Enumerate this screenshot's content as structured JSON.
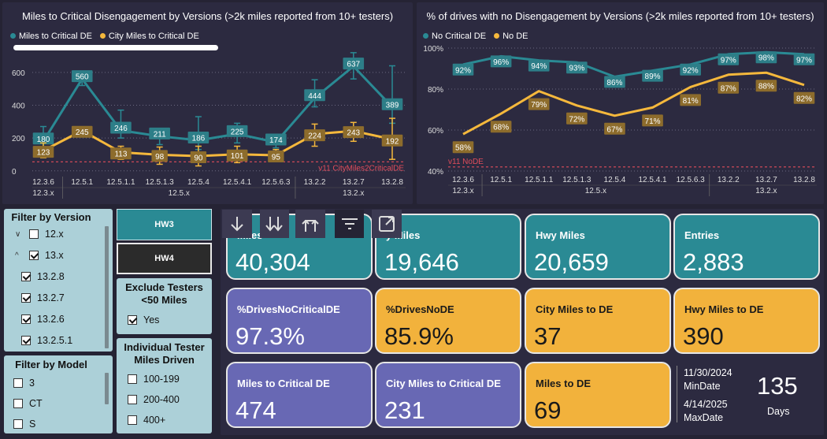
{
  "colors": {
    "teal": "#2a8a94",
    "yellow": "#f5b83c",
    "purple": "#6868b4",
    "red": "#e04c5a",
    "bg": "#252334"
  },
  "chart1": {
    "title": "Miles to Critical Disengagement by Versions (>2k miles reported from 10+ testers)",
    "legend": [
      "Miles to Critical DE",
      "City Miles to Critical DE"
    ],
    "y_ticks": [
      "0",
      "200",
      "400",
      "600"
    ],
    "ref_label": "v11 CityMiles2CriticalDE"
  },
  "chart2": {
    "title": "% of drives with no Disengagement by Versions (>2k miles reported from 10+ testers)",
    "legend": [
      "No Critical DE",
      "No DE"
    ],
    "y_ticks": [
      "40%",
      "60%",
      "80%",
      "100%"
    ],
    "ref_label": "v11 NoDE"
  },
  "chart_data": [
    {
      "type": "line",
      "title": "Miles to Critical Disengagement by Versions (>2k miles reported from 10+ testers)",
      "categories": [
        "12.3.6",
        "12.5.1",
        "12.5.1.1",
        "12.5.1.3",
        "12.5.4",
        "12.5.4.1",
        "12.5.6.3",
        "13.2.2",
        "13.2.7",
        "13.2.8"
      ],
      "group_labels": [
        {
          "label": "12.3.x",
          "from": 0,
          "to": 0
        },
        {
          "label": "12.5.x",
          "from": 1,
          "to": 6
        },
        {
          "label": "13.2.x",
          "from": 7,
          "to": 9
        }
      ],
      "series": [
        {
          "name": "Miles to Critical DE",
          "values": [
            180,
            560,
            246,
            211,
            186,
            225,
            174,
            444,
            637,
            389
          ],
          "error_low": [
            140,
            520,
            200,
            160,
            130,
            170,
            140,
            390,
            560,
            290
          ],
          "error_high": [
            270,
            580,
            370,
            250,
            330,
            290,
            215,
            555,
            720,
            640
          ]
        },
        {
          "name": "City Miles to Critical DE",
          "values": [
            123,
            245,
            113,
            98,
            90,
            101,
            95,
            224,
            243,
            192
          ],
          "error_low": [
            80,
            225,
            70,
            40,
            30,
            50,
            60,
            150,
            180,
            70
          ],
          "error_high": [
            170,
            265,
            150,
            145,
            150,
            150,
            130,
            285,
            295,
            320
          ]
        }
      ],
      "reference_line": {
        "label": "v11 CityMiles2CriticalDE",
        "value": 55
      },
      "ylim": [
        -30,
        700
      ],
      "grid": true,
      "legend_position": "top-left"
    },
    {
      "type": "line",
      "title": "% of drives with no Disengagement by Versions (>2k miles reported from 10+ testers)",
      "categories": [
        "12.3.6",
        "12.5.1",
        "12.5.1.1",
        "12.5.1.3",
        "12.5.4",
        "12.5.4.1",
        "12.5.6.3",
        "13.2.2",
        "13.2.7",
        "13.2.8"
      ],
      "group_labels": [
        {
          "label": "12.3.x",
          "from": 0,
          "to": 0
        },
        {
          "label": "12.5.x",
          "from": 1,
          "to": 6
        },
        {
          "label": "13.2.x",
          "from": 7,
          "to": 9
        }
      ],
      "series": [
        {
          "name": "No Critical DE",
          "values": [
            92,
            96,
            94,
            93,
            86,
            89,
            92,
            97,
            98,
            97
          ],
          "labels": [
            "92%",
            "96%",
            "94%",
            "93%",
            "86%",
            "89%",
            "92%",
            "97%",
            "98%",
            "97%"
          ]
        },
        {
          "name": "No DE",
          "values": [
            58,
            68,
            79,
            72,
            67,
            71,
            81,
            87,
            88,
            82
          ],
          "labels": [
            "58%",
            "68%",
            "79%",
            "72%",
            "67%",
            "71%",
            "81%",
            "87%",
            "88%",
            "82%"
          ]
        }
      ],
      "reference_line": {
        "label": "v11 NoDE",
        "value": 42
      },
      "ylim": [
        40,
        100
      ],
      "grid": true,
      "legend_position": "top-left"
    }
  ],
  "filter_version": {
    "title": "Filter by Version",
    "items": [
      {
        "label": "12.x",
        "checked": false,
        "caret": "⌄",
        "level": 0
      },
      {
        "label": "13.x",
        "checked": true,
        "caret": "⌃",
        "level": 0
      },
      {
        "label": "13.2.8",
        "checked": true,
        "caret": "",
        "level": 1
      },
      {
        "label": "13.2.7",
        "checked": true,
        "caret": "",
        "level": 1
      },
      {
        "label": "13.2.6",
        "checked": true,
        "caret": "",
        "level": 1
      },
      {
        "label": "13.2.5.1",
        "checked": true,
        "caret": "",
        "level": 1
      }
    ]
  },
  "filter_model": {
    "title": "Filter by Model",
    "items": [
      {
        "label": "3"
      },
      {
        "label": "CT"
      },
      {
        "label": "S"
      }
    ]
  },
  "hw": {
    "hw3": "HW3",
    "hw4": "HW4"
  },
  "exclude": {
    "title": "Exclude Testers <50 Miles",
    "option": "Yes"
  },
  "tester": {
    "title": "Individual Tester Miles Driven",
    "items": [
      "100-199",
      "200-400",
      "400+"
    ]
  },
  "cards": [
    {
      "label": "Miles",
      "value": "40,304",
      "style": "teal"
    },
    {
      "label": "y Miles",
      "value": "19,646",
      "style": "teal"
    },
    {
      "label": "Hwy Miles",
      "value": "20,659",
      "style": "teal"
    },
    {
      "label": "Entries",
      "value": "2,883",
      "style": "teal"
    },
    {
      "label": "%DrivesNoCriticalDE",
      "value": "97.3%",
      "style": "purple"
    },
    {
      "label": "%DrivesNoDE",
      "value": "85.9%",
      "style": "yellow"
    },
    {
      "label": "City Miles to DE",
      "value": "37",
      "style": "yellow"
    },
    {
      "label": "Hwy Miles to DE",
      "value": "390",
      "style": "yellow"
    },
    {
      "label": "Miles to Critical DE",
      "value": "474",
      "style": "purple"
    },
    {
      "label": "City Miles to Critical DE",
      "value": "231",
      "style": "purple"
    },
    {
      "label": "Miles to DE",
      "value": "69",
      "style": "yellow"
    }
  ],
  "dates": {
    "min_date": "11/30/2024",
    "min_label": "MinDate",
    "max_date": "4/14/2025",
    "max_label": "MaxDate",
    "days": "135",
    "days_label": "Days"
  },
  "toolbar_icons": [
    "arrow-down-icon",
    "double-arrow-down-icon",
    "drill-up-icon",
    "filter-icon",
    "focus-mode-icon"
  ]
}
